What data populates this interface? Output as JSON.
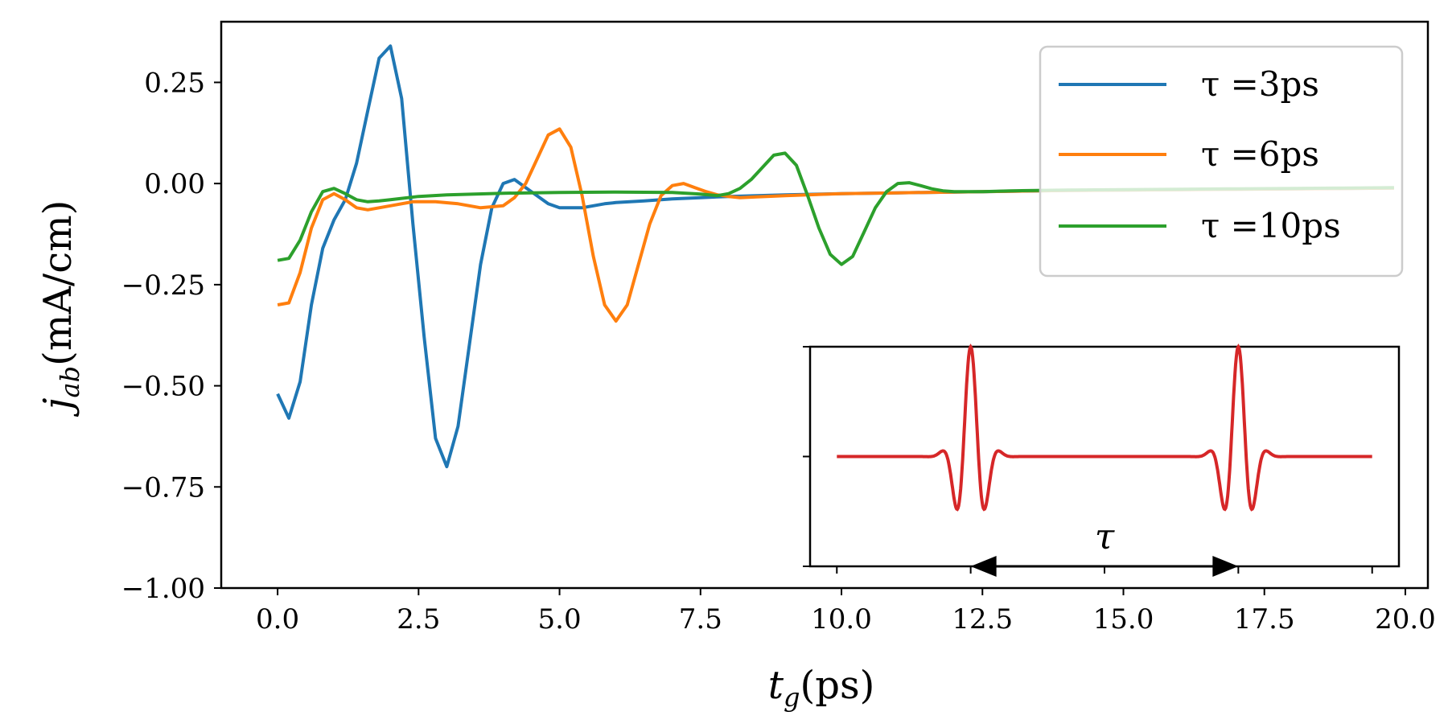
{
  "chart_data": {
    "type": "line",
    "title": "",
    "xlabel_main": "t",
    "xlabel_sub": "g",
    "xlabel_unit": "(ps)",
    "ylabel_main": "j",
    "ylabel_sub": "ab",
    "ylabel_unit": "(mA/cm)",
    "xlim": [
      -1.0,
      20.4
    ],
    "ylim": [
      -1.0,
      0.4
    ],
    "xticks": [
      0.0,
      2.5,
      5.0,
      7.5,
      10.0,
      12.5,
      15.0,
      17.5,
      20.0
    ],
    "xtick_labels": [
      "0.0",
      "2.5",
      "5.0",
      "7.5",
      "10.0",
      "12.5",
      "15.0",
      "17.5",
      "20.0"
    ],
    "yticks": [
      0.25,
      0.0,
      -0.25,
      -0.5,
      -0.75,
      -1.0
    ],
    "ytick_labels": [
      "0.25",
      "0.00",
      "−0.25",
      "−0.50",
      "−0.75",
      "−1.00"
    ],
    "legend": {
      "position": "top-right"
    },
    "series": [
      {
        "name": "τ =3ps",
        "color": "#1f77b4",
        "x": [
          0.0,
          0.2,
          0.4,
          0.6,
          0.8,
          1.0,
          1.2,
          1.4,
          1.6,
          1.8,
          2.0,
          2.2,
          2.4,
          2.6,
          2.8,
          3.0,
          3.2,
          3.4,
          3.6,
          3.8,
          4.0,
          4.2,
          4.4,
          4.6,
          4.8,
          5.0,
          5.2,
          5.4,
          5.6,
          5.8,
          6.0,
          6.5,
          7.0,
          7.5,
          8.0,
          9.0,
          10.0,
          11.0,
          12.0,
          13.0,
          14.0,
          15.0,
          16.0,
          17.0,
          18.0,
          19.0,
          19.8
        ],
        "values": [
          -0.52,
          -0.58,
          -0.49,
          -0.3,
          -0.16,
          -0.09,
          -0.04,
          0.05,
          0.18,
          0.31,
          0.34,
          0.21,
          -0.1,
          -0.38,
          -0.63,
          -0.7,
          -0.6,
          -0.4,
          -0.2,
          -0.06,
          0.0,
          0.01,
          -0.01,
          -0.03,
          -0.05,
          -0.06,
          -0.06,
          -0.06,
          -0.055,
          -0.05,
          -0.047,
          -0.043,
          -0.038,
          -0.035,
          -0.032,
          -0.028,
          -0.025,
          -0.023,
          -0.021,
          -0.019,
          -0.017,
          -0.016,
          -0.015,
          -0.014,
          -0.013,
          -0.012,
          -0.011
        ]
      },
      {
        "name": "τ =6ps",
        "color": "#ff7f0e",
        "x": [
          0.0,
          0.2,
          0.4,
          0.6,
          0.8,
          1.0,
          1.2,
          1.4,
          1.6,
          1.8,
          2.0,
          2.4,
          2.8,
          3.2,
          3.6,
          4.0,
          4.2,
          4.4,
          4.6,
          4.8,
          5.0,
          5.2,
          5.4,
          5.6,
          5.8,
          6.0,
          6.2,
          6.4,
          6.6,
          6.8,
          7.0,
          7.2,
          7.4,
          7.6,
          7.8,
          8.0,
          8.2,
          8.5,
          9.0,
          10.0,
          11.0,
          12.0,
          13.0,
          14.0,
          15.0,
          16.0,
          17.0,
          18.0,
          19.0,
          19.8
        ],
        "values": [
          -0.3,
          -0.295,
          -0.22,
          -0.11,
          -0.04,
          -0.025,
          -0.04,
          -0.06,
          -0.065,
          -0.06,
          -0.055,
          -0.045,
          -0.045,
          -0.05,
          -0.06,
          -0.055,
          -0.035,
          0.0,
          0.06,
          0.12,
          0.135,
          0.09,
          -0.03,
          -0.18,
          -0.3,
          -0.34,
          -0.3,
          -0.2,
          -0.1,
          -0.03,
          -0.005,
          0.0,
          -0.01,
          -0.02,
          -0.028,
          -0.032,
          -0.035,
          -0.033,
          -0.03,
          -0.025,
          -0.023,
          -0.021,
          -0.019,
          -0.017,
          -0.016,
          -0.015,
          -0.014,
          -0.013,
          -0.012,
          -0.011
        ]
      },
      {
        "name": "τ =10ps",
        "color": "#2ca02c",
        "x": [
          0.0,
          0.2,
          0.4,
          0.6,
          0.8,
          1.0,
          1.2,
          1.4,
          1.6,
          1.8,
          2.0,
          2.5,
          3.0,
          4.0,
          5.0,
          6.0,
          7.0,
          7.5,
          7.8,
          8.0,
          8.2,
          8.4,
          8.6,
          8.8,
          9.0,
          9.2,
          9.4,
          9.6,
          9.8,
          10.0,
          10.2,
          10.4,
          10.6,
          10.8,
          11.0,
          11.2,
          11.4,
          11.6,
          11.8,
          12.0,
          12.5,
          13.0,
          14.0,
          15.0,
          16.0,
          17.0,
          18.0,
          19.0,
          19.8
        ],
        "values": [
          -0.19,
          -0.185,
          -0.14,
          -0.07,
          -0.02,
          -0.012,
          -0.025,
          -0.04,
          -0.045,
          -0.043,
          -0.04,
          -0.032,
          -0.028,
          -0.024,
          -0.022,
          -0.021,
          -0.022,
          -0.026,
          -0.03,
          -0.025,
          -0.012,
          0.01,
          0.04,
          0.07,
          0.075,
          0.045,
          -0.03,
          -0.11,
          -0.175,
          -0.2,
          -0.18,
          -0.12,
          -0.06,
          -0.02,
          0.0,
          0.002,
          -0.005,
          -0.013,
          -0.018,
          -0.02,
          -0.02,
          -0.018,
          -0.016,
          -0.015,
          -0.014,
          -0.013,
          -0.012,
          -0.011,
          -0.01
        ]
      }
    ],
    "inset": {
      "type": "line",
      "color": "#d62728",
      "xlim": [
        -1.0,
        21.0
      ],
      "ylim": [
        -1.0,
        1.0
      ],
      "xticks": [
        0.0,
        5.0,
        10.0,
        15.0,
        20.0
      ],
      "yticks": [
        -1.0,
        0.0,
        1.0
      ],
      "pulse_centers": [
        5.0,
        15.0
      ],
      "pulse_width": 0.45,
      "pulse_frequency": 0.85,
      "annotation": "τ",
      "arrow_from": 5.0,
      "arrow_to": 15.0,
      "arrow_y": -1.0
    }
  }
}
